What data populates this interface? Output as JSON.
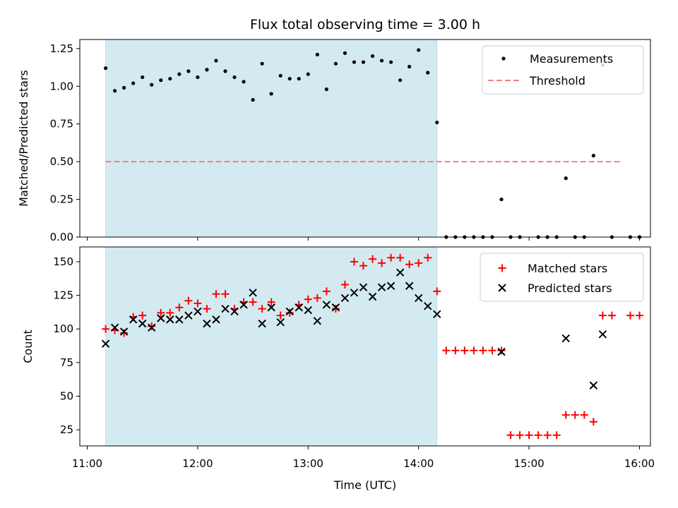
{
  "chart_data": [
    {
      "type": "scatter",
      "title": "Flux total observing time = 3.00 h",
      "xlabel": "",
      "ylabel": "Matched/Predicted stars",
      "ylim": [
        0,
        1.31
      ],
      "yticks": [
        "0.00",
        "0.25",
        "0.50",
        "0.75",
        "1.00",
        "1.25"
      ],
      "ytick_values": [
        0,
        0.25,
        0.5,
        0.75,
        1.0,
        1.25
      ],
      "x_time_range": [
        "11:00",
        "16:00"
      ],
      "shaded_span": [
        "11:10",
        "14:10"
      ],
      "shade_color": "#d4eaf1",
      "threshold": {
        "name": "Threshold",
        "y": 0.5,
        "x_range": [
          "11:10",
          "15:50"
        ],
        "color": "#f08080"
      },
      "legend": {
        "placement": "top-right",
        "entries": [
          "Measurements",
          "Threshold"
        ]
      },
      "series": [
        {
          "name": "Measurements",
          "color": "#000000",
          "points": [
            [
              "11:10",
              1.12
            ],
            [
              "11:15",
              0.97
            ],
            [
              "11:20",
              0.99
            ],
            [
              "11:25",
              1.02
            ],
            [
              "11:30",
              1.06
            ],
            [
              "11:35",
              1.01
            ],
            [
              "11:40",
              1.04
            ],
            [
              "11:45",
              1.05
            ],
            [
              "11:50",
              1.08
            ],
            [
              "11:55",
              1.1
            ],
            [
              "12:00",
              1.06
            ],
            [
              "12:05",
              1.11
            ],
            [
              "12:10",
              1.17
            ],
            [
              "12:15",
              1.1
            ],
            [
              "12:20",
              1.06
            ],
            [
              "12:25",
              1.03
            ],
            [
              "12:30",
              0.91
            ],
            [
              "12:35",
              1.15
            ],
            [
              "12:40",
              0.95
            ],
            [
              "12:45",
              1.07
            ],
            [
              "12:50",
              1.05
            ],
            [
              "12:55",
              1.05
            ],
            [
              "13:00",
              1.08
            ],
            [
              "13:05",
              1.21
            ],
            [
              "13:10",
              0.98
            ],
            [
              "13:15",
              1.15
            ],
            [
              "13:20",
              1.22
            ],
            [
              "13:25",
              1.16
            ],
            [
              "13:30",
              1.16
            ],
            [
              "13:35",
              1.2
            ],
            [
              "13:40",
              1.17
            ],
            [
              "13:45",
              1.16
            ],
            [
              "13:50",
              1.04
            ],
            [
              "13:55",
              1.13
            ],
            [
              "14:00",
              1.24
            ],
            [
              "14:05",
              1.09
            ],
            [
              "14:10",
              0.76
            ],
            [
              "14:15",
              0
            ],
            [
              "14:20",
              0
            ],
            [
              "14:25",
              0
            ],
            [
              "14:30",
              0
            ],
            [
              "14:35",
              0
            ],
            [
              "14:40",
              0
            ],
            [
              "14:45",
              0.25
            ],
            [
              "14:50",
              0
            ],
            [
              "14:55",
              0
            ],
            [
              "15:05",
              0
            ],
            [
              "15:10",
              0
            ],
            [
              "15:15",
              0
            ],
            [
              "15:20",
              0.39
            ],
            [
              "15:25",
              0
            ],
            [
              "15:30",
              0
            ],
            [
              "15:35",
              0.54
            ],
            [
              "15:40",
              1.14
            ],
            [
              "15:45",
              0
            ],
            [
              "15:55",
              0
            ],
            [
              "16:00",
              0
            ]
          ]
        }
      ]
    },
    {
      "type": "scatter",
      "title": "",
      "xlabel": "Time (UTC)",
      "ylabel": "Count",
      "ylim": [
        13,
        161
      ],
      "yticks": [
        "25",
        "50",
        "75",
        "100",
        "125",
        "150"
      ],
      "ytick_values": [
        25,
        50,
        75,
        100,
        125,
        150
      ],
      "xticks": [
        "11:00",
        "12:00",
        "13:00",
        "14:00",
        "15:00",
        "16:00"
      ],
      "x_time_range": [
        "11:00",
        "16:00"
      ],
      "shaded_span": [
        "11:10",
        "14:10"
      ],
      "shade_color": "#d4eaf1",
      "legend": {
        "placement": "top-right",
        "entries": [
          "Matched stars",
          "Predicted stars"
        ]
      },
      "series": [
        {
          "name": "Matched stars",
          "marker": "plus",
          "color": "#ff0000",
          "points": [
            [
              "11:10",
              100
            ],
            [
              "11:15",
              99
            ],
            [
              "11:20",
              97
            ],
            [
              "11:25",
              109
            ],
            [
              "11:30",
              110
            ],
            [
              "11:35",
              102
            ],
            [
              "11:40",
              112
            ],
            [
              "11:45",
              112
            ],
            [
              "11:50",
              116
            ],
            [
              "11:55",
              121
            ],
            [
              "12:00",
              119
            ],
            [
              "12:05",
              115
            ],
            [
              "12:10",
              126
            ],
            [
              "12:15",
              126
            ],
            [
              "12:20",
              115
            ],
            [
              "12:25",
              120
            ],
            [
              "12:30",
              120
            ],
            [
              "12:35",
              115
            ],
            [
              "12:40",
              120
            ],
            [
              "12:45",
              110
            ],
            [
              "12:50",
              112
            ],
            [
              "12:55",
              118
            ],
            [
              "13:00",
              122
            ],
            [
              "13:05",
              123
            ],
            [
              "13:10",
              128
            ],
            [
              "13:15",
              115
            ],
            [
              "13:20",
              133
            ],
            [
              "13:25",
              150
            ],
            [
              "13:30",
              147
            ],
            [
              "13:35",
              152
            ],
            [
              "13:40",
              149
            ],
            [
              "13:45",
              153
            ],
            [
              "13:50",
              153
            ],
            [
              "13:55",
              148
            ],
            [
              "14:00",
              149
            ],
            [
              "14:05",
              153
            ],
            [
              "14:10",
              128
            ],
            [
              "14:15",
              84
            ],
            [
              "14:20",
              84
            ],
            [
              "14:25",
              84
            ],
            [
              "14:30",
              84
            ],
            [
              "14:35",
              84
            ],
            [
              "14:40",
              84
            ],
            [
              "14:45",
              84
            ],
            [
              "14:50",
              21
            ],
            [
              "14:55",
              21
            ],
            [
              "15:00",
              21
            ],
            [
              "15:05",
              21
            ],
            [
              "15:10",
              21
            ],
            [
              "15:15",
              21
            ],
            [
              "15:20",
              36
            ],
            [
              "15:25",
              36
            ],
            [
              "15:30",
              36
            ],
            [
              "15:35",
              31
            ],
            [
              "15:40",
              110
            ],
            [
              "15:45",
              110
            ],
            [
              "15:55",
              110
            ],
            [
              "16:00",
              110
            ]
          ]
        },
        {
          "name": "Predicted stars",
          "marker": "x",
          "color": "#000000",
          "points": [
            [
              "11:10",
              89
            ],
            [
              "11:15",
              101
            ],
            [
              "11:20",
              98
            ],
            [
              "11:25",
              107
            ],
            [
              "11:30",
              104
            ],
            [
              "11:35",
              101
            ],
            [
              "11:40",
              108
            ],
            [
              "11:45",
              107
            ],
            [
              "11:50",
              107
            ],
            [
              "11:55",
              110
            ],
            [
              "12:00",
              113
            ],
            [
              "12:05",
              104
            ],
            [
              "12:10",
              107
            ],
            [
              "12:15",
              115
            ],
            [
              "12:20",
              113
            ],
            [
              "12:25",
              118
            ],
            [
              "12:30",
              127
            ],
            [
              "12:35",
              104
            ],
            [
              "12:40",
              116
            ],
            [
              "12:45",
              105
            ],
            [
              "12:50",
              113
            ],
            [
              "12:55",
              116
            ],
            [
              "13:00",
              114
            ],
            [
              "13:05",
              106
            ],
            [
              "13:10",
              118
            ],
            [
              "13:15",
              116
            ],
            [
              "13:20",
              123
            ],
            [
              "13:25",
              127
            ],
            [
              "13:30",
              131
            ],
            [
              "13:35",
              124
            ],
            [
              "13:40",
              131
            ],
            [
              "13:45",
              132
            ],
            [
              "13:50",
              142
            ],
            [
              "13:55",
              132
            ],
            [
              "14:00",
              123
            ],
            [
              "14:05",
              117
            ],
            [
              "14:10",
              111
            ],
            [
              "14:45",
              83
            ],
            [
              "15:20",
              93
            ],
            [
              "15:35",
              58
            ],
            [
              "15:40",
              96
            ]
          ]
        }
      ]
    }
  ]
}
